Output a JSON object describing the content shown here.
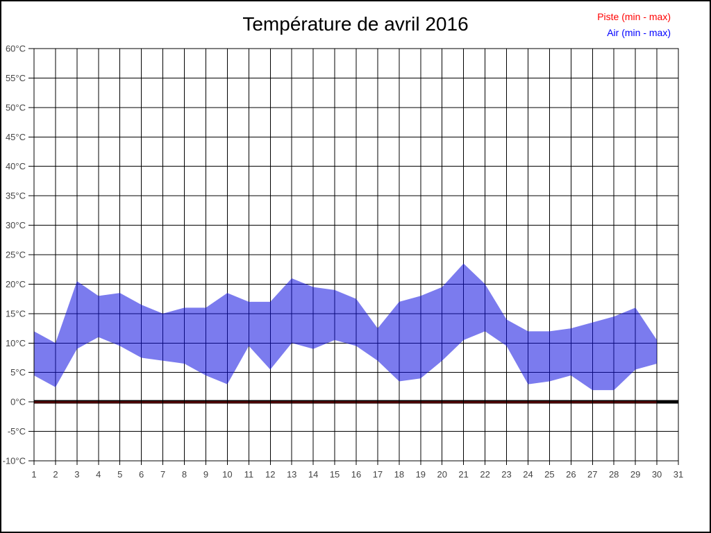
{
  "title": "Température de avril 2016",
  "legend": [
    {
      "label": "Piste (min - max)",
      "color": "#ff0000"
    },
    {
      "label": "Air (min - max)",
      "color": "#0000ff"
    }
  ],
  "colors": {
    "air_band_fill": "#0f0fe0",
    "air_band_opacity": 0.55,
    "air_band_flat": "#7b7bee",
    "piste_line": "#990000",
    "zero_line": "#000000",
    "grid": "#000000",
    "tick_label": "#444444"
  },
  "chart_data": {
    "type": "area",
    "title": "Température de avril 2016",
    "xlabel": "",
    "ylabel": "",
    "xlim": [
      1,
      31
    ],
    "ylim": [
      -10,
      60
    ],
    "grid": true,
    "legend_position": "top-right",
    "xtick_labels": [
      "1",
      "2",
      "3",
      "4",
      "5",
      "6",
      "7",
      "8",
      "9",
      "10",
      "11",
      "12",
      "13",
      "14",
      "15",
      "16",
      "17",
      "18",
      "19",
      "20",
      "21",
      "22",
      "23",
      "24",
      "25",
      "26",
      "27",
      "28",
      "29",
      "30",
      "31"
    ],
    "ytick_values": [
      60,
      55,
      50,
      45,
      40,
      35,
      30,
      25,
      20,
      15,
      10,
      5,
      0,
      -5,
      -10
    ],
    "ytick_labels": [
      "60°C",
      "55°C",
      "50°C",
      "45°C",
      "40°C",
      "35°C",
      "30°C",
      "25°C",
      "20°C",
      "15°C",
      "10°C",
      "5°C",
      "0°C",
      "-5°C",
      "-10°C"
    ],
    "days": [
      1,
      2,
      3,
      4,
      5,
      6,
      7,
      8,
      9,
      10,
      11,
      12,
      13,
      14,
      15,
      16,
      17,
      18,
      19,
      20,
      21,
      22,
      23,
      24,
      25,
      26,
      27,
      28,
      29,
      30
    ],
    "series": [
      {
        "name": "Piste (min - max)",
        "min": [
          0,
          0,
          0,
          0,
          0,
          0,
          0,
          0,
          0,
          0,
          0,
          0,
          0,
          0,
          0,
          0,
          0,
          0,
          0,
          0,
          0,
          0,
          0,
          0,
          0,
          0,
          0,
          0,
          0,
          0
        ],
        "max": [
          0,
          0,
          0,
          0,
          0,
          0,
          0,
          0,
          0,
          0,
          0,
          0,
          0,
          0,
          0,
          0,
          0,
          0,
          0,
          0,
          0,
          0,
          0,
          0,
          0,
          0,
          0,
          0,
          0,
          0
        ]
      },
      {
        "name": "Air (min - max)",
        "min": [
          4.5,
          2.5,
          9,
          11,
          9.5,
          7.5,
          7,
          6.5,
          4.5,
          3,
          9.5,
          5.5,
          10,
          9,
          10.5,
          9.5,
          7,
          3.5,
          4,
          7,
          10.5,
          12,
          9.5,
          3,
          3.5,
          4.5,
          2,
          2,
          5.5,
          6.5
        ],
        "max": [
          12,
          10,
          20.5,
          18,
          18.5,
          16.5,
          15,
          16,
          16,
          18.5,
          17,
          17,
          21,
          19.5,
          19,
          17.5,
          12.5,
          17,
          18,
          19.5,
          23.5,
          20,
          14,
          12,
          12,
          12.5,
          13.5,
          14.5,
          16,
          10.5
        ]
      }
    ]
  }
}
